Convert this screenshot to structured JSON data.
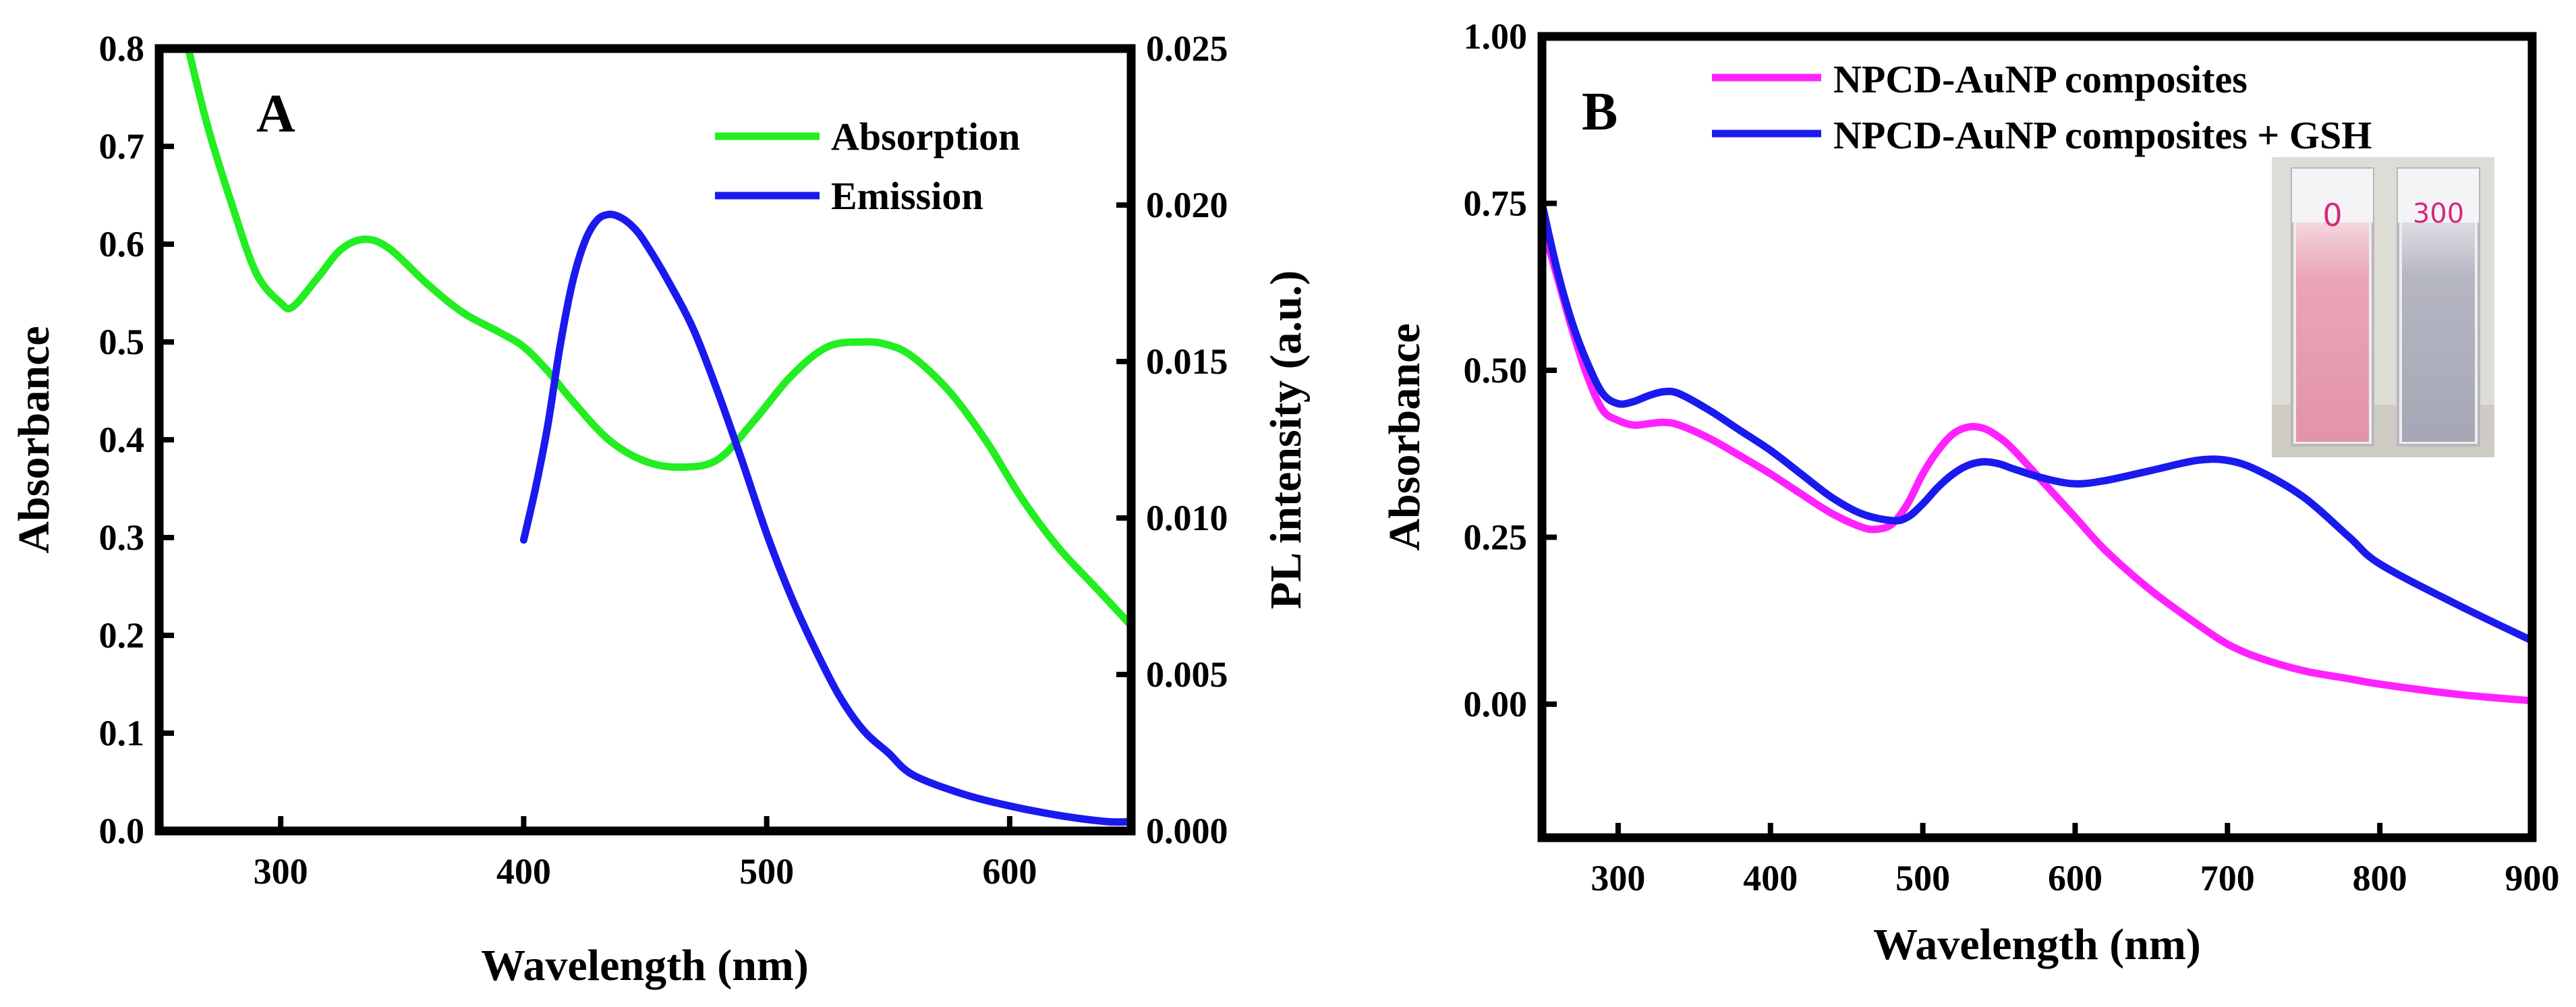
{
  "chart_data": [
    {
      "panel_label": "A",
      "type": "line",
      "xlabel": "Wavelength (nm)",
      "ylabel": "Absorbance",
      "y2label": "PL intensity (a.u.)",
      "xlim": [
        250,
        650
      ],
      "ylim": [
        0,
        0.8
      ],
      "y2lim": [
        0,
        0.025
      ],
      "x_ticks": [
        300,
        400,
        500,
        600
      ],
      "y_ticks": [
        "0.0",
        "0.1",
        "0.2",
        "0.3",
        "0.4",
        "0.5",
        "0.6",
        "0.7",
        "0.8"
      ],
      "y2_ticks": [
        "0.000",
        "0.005",
        "0.010",
        "0.015",
        "0.020",
        "0.025"
      ],
      "legend_position": "top-right",
      "series": [
        {
          "name": "Absorption",
          "color": "#22ee22",
          "axis": "left",
          "x": [
            262,
            270,
            280,
            290,
            300,
            305,
            315,
            325,
            335,
            345,
            360,
            375,
            390,
            400,
            410,
            420,
            435,
            450,
            465,
            480,
            495,
            510,
            525,
            540,
            550,
            560,
            575,
            590,
            605,
            620,
            635,
            650
          ],
          "y": [
            0.8,
            0.72,
            0.64,
            0.57,
            0.54,
            0.536,
            0.565,
            0.595,
            0.605,
            0.595,
            0.56,
            0.53,
            0.51,
            0.495,
            0.47,
            0.44,
            0.4,
            0.378,
            0.372,
            0.38,
            0.42,
            0.465,
            0.495,
            0.5,
            0.497,
            0.485,
            0.45,
            0.4,
            0.34,
            0.29,
            0.25,
            0.21
          ]
        },
        {
          "name": "Emission",
          "color": "#1a1aee",
          "axis": "right",
          "x": [
            400,
            405,
            410,
            415,
            420,
            425,
            430,
            435,
            440,
            445,
            450,
            460,
            470,
            480,
            490,
            500,
            510,
            520,
            530,
            540,
            550,
            560,
            580,
            600,
            620,
            640,
            650
          ],
          "y": [
            0.0093,
            0.011,
            0.013,
            0.0155,
            0.0175,
            0.0188,
            0.0195,
            0.0197,
            0.0196,
            0.0193,
            0.0188,
            0.0175,
            0.016,
            0.014,
            0.0118,
            0.0095,
            0.0075,
            0.0058,
            0.0043,
            0.0032,
            0.0025,
            0.0018,
            0.0012,
            0.0008,
            0.0005,
            0.0003,
            0.0003
          ]
        }
      ]
    },
    {
      "panel_label": "B",
      "type": "line",
      "xlabel": "Wavelength (nm)",
      "ylabel": "Absorbance",
      "xlim": [
        250,
        900
      ],
      "ylim": [
        -0.2,
        1.0
      ],
      "x_ticks": [
        300,
        400,
        500,
        600,
        700,
        800,
        900
      ],
      "y_ticks": [
        "0.00",
        "0.25",
        "0.50",
        "0.75",
        "1.00"
      ],
      "legend_position": "top-right",
      "inset_labels": [
        "0",
        "300"
      ],
      "series": [
        {
          "name": "NPCD-AuNP composites",
          "color": "#ff22ff",
          "x": [
            250,
            260,
            270,
            280,
            290,
            300,
            310,
            320,
            330,
            340,
            360,
            380,
            400,
            420,
            440,
            460,
            470,
            480,
            490,
            500,
            510,
            520,
            530,
            540,
            550,
            560,
            580,
            600,
            620,
            650,
            680,
            700,
            720,
            750,
            780,
            800,
            850,
            900
          ],
          "y": [
            0.72,
            0.64,
            0.56,
            0.49,
            0.44,
            0.425,
            0.418,
            0.42,
            0.422,
            0.418,
            0.398,
            0.372,
            0.345,
            0.315,
            0.286,
            0.265,
            0.262,
            0.27,
            0.3,
            0.345,
            0.38,
            0.405,
            0.415,
            0.413,
            0.4,
            0.38,
            0.33,
            0.28,
            0.23,
            0.17,
            0.12,
            0.09,
            0.07,
            0.05,
            0.038,
            0.03,
            0.015,
            0.005
          ]
        },
        {
          "name": "NPCD-AuNP composites + GSH",
          "color": "#1a1aee",
          "x": [
            250,
            260,
            270,
            280,
            290,
            300,
            310,
            320,
            330,
            340,
            360,
            380,
            400,
            420,
            440,
            460,
            480,
            490,
            500,
            510,
            520,
            530,
            540,
            550,
            560,
            580,
            600,
            620,
            650,
            680,
            700,
            720,
            750,
            780,
            800,
            850,
            900
          ],
          "y": [
            0.75,
            0.65,
            0.57,
            0.51,
            0.465,
            0.45,
            0.453,
            0.462,
            0.468,
            0.465,
            0.44,
            0.41,
            0.38,
            0.345,
            0.31,
            0.285,
            0.275,
            0.28,
            0.3,
            0.325,
            0.345,
            0.358,
            0.363,
            0.36,
            0.352,
            0.338,
            0.33,
            0.335,
            0.35,
            0.365,
            0.365,
            0.35,
            0.31,
            0.25,
            0.21,
            0.15,
            0.095
          ]
        }
      ]
    }
  ]
}
